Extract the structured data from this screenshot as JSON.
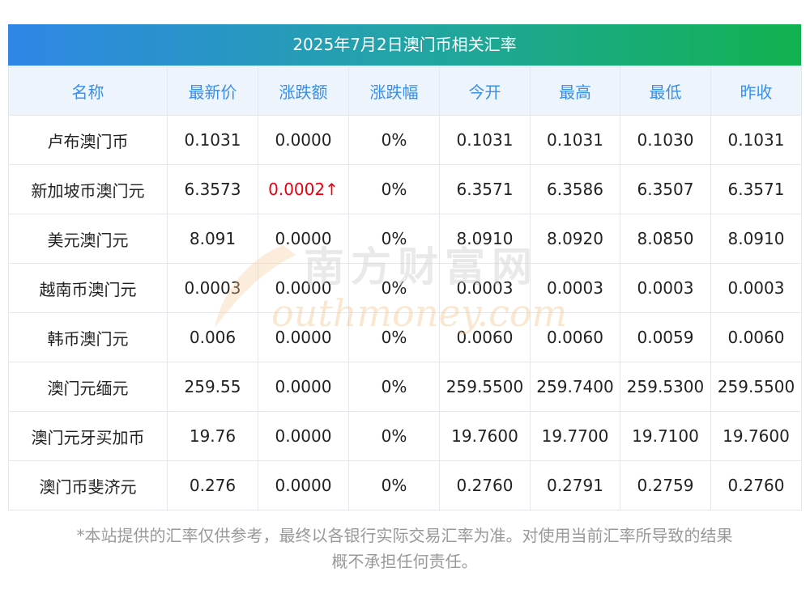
{
  "title": "2025年7月2日澳门币相关汇率",
  "columns": [
    "名称",
    "最新价",
    "涨跌额",
    "涨跌幅",
    "今开",
    "最高",
    "最低",
    "昨收"
  ],
  "rows": [
    {
      "name": "卢布澳门币",
      "latest": "0.1031",
      "change": "0.0000",
      "change_pct": "0%",
      "open": "0.1031",
      "high": "0.1031",
      "low": "0.1030",
      "prev_close": "0.1031"
    },
    {
      "name": "新加坡币澳门元",
      "latest": "6.3573",
      "change": "0.0002↑",
      "change_pct": "0%",
      "open": "6.3571",
      "high": "6.3586",
      "low": "6.3507",
      "prev_close": "6.3571"
    },
    {
      "name": "美元澳门元",
      "latest": "8.091",
      "change": "0.0000",
      "change_pct": "0%",
      "open": "8.0910",
      "high": "8.0920",
      "low": "8.0850",
      "prev_close": "8.0910"
    },
    {
      "name": "越南币澳门元",
      "latest": "0.0003",
      "change": "0.0000",
      "change_pct": "0%",
      "open": "0.0003",
      "high": "0.0003",
      "low": "0.0003",
      "prev_close": "0.0003"
    },
    {
      "name": "韩币澳门元",
      "latest": "0.006",
      "change": "0.0000",
      "change_pct": "0%",
      "open": "0.0060",
      "high": "0.0060",
      "low": "0.0059",
      "prev_close": "0.0060"
    },
    {
      "name": "澳门元缅元",
      "latest": "259.55",
      "change": "0.0000",
      "change_pct": "0%",
      "open": "259.5500",
      "high": "259.7400",
      "low": "259.5300",
      "prev_close": "259.5500"
    },
    {
      "name": "澳门元牙买加币",
      "latest": "19.76",
      "change": "0.0000",
      "change_pct": "0%",
      "open": "19.7600",
      "high": "19.7700",
      "low": "19.7100",
      "prev_close": "19.7600"
    },
    {
      "name": "澳门币斐济元",
      "latest": "0.276",
      "change": "0.0000",
      "change_pct": "0%",
      "open": "0.2760",
      "high": "0.2791",
      "low": "0.2759",
      "prev_close": "0.2760"
    }
  ],
  "note_line1": "*本站提供的汇率仅供参考，最终以各银行实际交易汇率为准。对使用当前汇率所导致的结果",
  "note_line2": "概不承担任何责任。",
  "watermark": {
    "cn": "南方财富网",
    "en": "outhmoney.com"
  },
  "colors": {
    "header_text": "#3a8ee6",
    "up": "#e60012",
    "note": "#999999"
  }
}
